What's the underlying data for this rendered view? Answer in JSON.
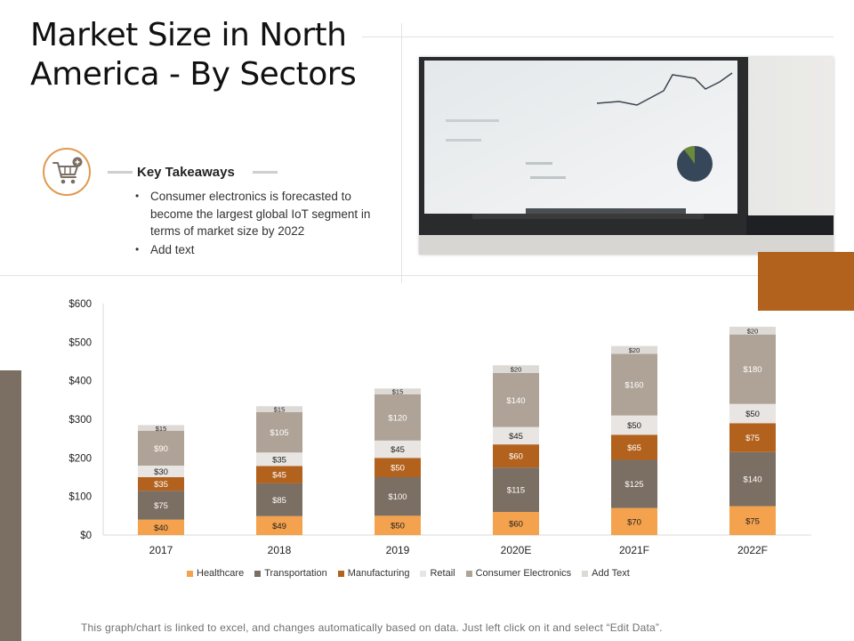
{
  "page": {
    "title": "Market Size in North America - By Sectors",
    "footnote": "This graph/chart is linked to excel, and changes automatically based on data. Just left click on it and select “Edit Data”."
  },
  "takeaways": {
    "icon": "shopping-cart-add-icon",
    "heading": "Key Takeaways",
    "bullets": [
      "Consumer electronics is forecasted to become the largest global IoT segment in terms of market size by 2022",
      "Add text"
    ]
  },
  "colors": {
    "accent": "#b2621d",
    "icon_ring": "#e09a4e",
    "sidebar": "#7b6e62"
  },
  "chart_data": {
    "type": "bar",
    "stacked": true,
    "categories": [
      "2017",
      "2018",
      "2019",
      "2020E",
      "2021F",
      "2022F"
    ],
    "series": [
      {
        "name": "Healthcare",
        "color": "#f4a24d",
        "values": [
          40,
          49,
          50,
          60,
          70,
          75
        ],
        "labels": [
          "$40",
          "$49",
          "$50",
          "$60",
          "$70",
          "$75"
        ]
      },
      {
        "name": "Transportation",
        "color": "#7b6e62",
        "values": [
          75,
          85,
          100,
          115,
          125,
          140
        ],
        "labels": [
          "$75",
          "$85",
          "$100",
          "$115",
          "$125",
          "$140"
        ]
      },
      {
        "name": "Manufacturing",
        "color": "#b2621d",
        "values": [
          35,
          45,
          50,
          60,
          65,
          75
        ],
        "labels": [
          "$35",
          "$45",
          "$50",
          "$60",
          "$65",
          "$75"
        ]
      },
      {
        "name": "Retail",
        "color": "#e8e5e2",
        "values": [
          30,
          35,
          45,
          45,
          50,
          50
        ],
        "labels": [
          "$30",
          "$35",
          "$45",
          "$45",
          "$50",
          "$50"
        ]
      },
      {
        "name": "Consumer Electronics",
        "color": "#afa397",
        "values": [
          90,
          105,
          120,
          140,
          160,
          180
        ],
        "labels": [
          "$90",
          "$105",
          "$120",
          "$140",
          "$160",
          "$180"
        ]
      },
      {
        "name": "Add Text",
        "color": "#dddad6",
        "values": [
          15,
          15,
          15,
          20,
          20,
          20
        ],
        "labels": [
          "$15",
          "$15",
          "$15",
          "$20",
          "$20",
          "$20"
        ]
      }
    ],
    "ylim": [
      0,
      600
    ],
    "yticks": [
      0,
      100,
      200,
      300,
      400,
      500,
      600
    ],
    "ytick_labels": [
      "$0",
      "$100",
      "$200",
      "$300",
      "$400",
      "$500",
      "$600"
    ],
    "grid": false,
    "legend_position": "bottom"
  }
}
